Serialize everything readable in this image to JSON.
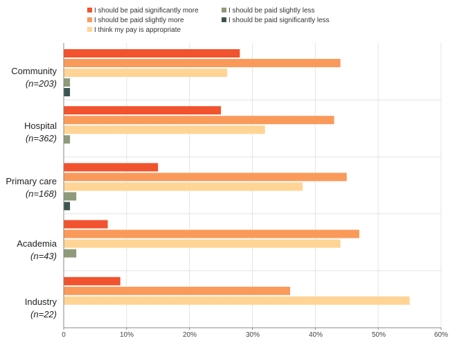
{
  "chart_data": {
    "type": "bar",
    "orientation": "horizontal",
    "categories": [
      {
        "name": "Community",
        "n": "(n=203)"
      },
      {
        "name": "Hospital",
        "n": "(n=362)"
      },
      {
        "name": "Primary care",
        "n": "(n=168)"
      },
      {
        "name": "Academia",
        "n": "(n=43)"
      },
      {
        "name": "Industry",
        "n": "(n=22)"
      }
    ],
    "series": [
      {
        "name": "I should be paid significantly more",
        "color": "#f0532e",
        "values": [
          28,
          25,
          15,
          7,
          9
        ]
      },
      {
        "name": "I should be paid slightly more",
        "color": "#fa9a5a",
        "values": [
          44,
          43,
          45,
          47,
          36
        ]
      },
      {
        "name": "I think my pay is appropriate",
        "color": "#ffd494",
        "values": [
          26,
          32,
          38,
          44,
          55
        ]
      },
      {
        "name": "I should be paid slightly less",
        "color": "#8e9a7a",
        "values": [
          1,
          1,
          2,
          2,
          0
        ]
      },
      {
        "name": "I should be paid significantly less",
        "color": "#3d5552",
        "values": [
          1,
          0,
          1,
          0,
          0
        ]
      }
    ],
    "xlim": [
      0,
      60
    ],
    "xticks": [
      "0",
      "10%",
      "20%",
      "30%",
      "40%",
      "50%",
      "60%"
    ],
    "xlabel": "",
    "ylabel": "",
    "legend_position": "top"
  }
}
